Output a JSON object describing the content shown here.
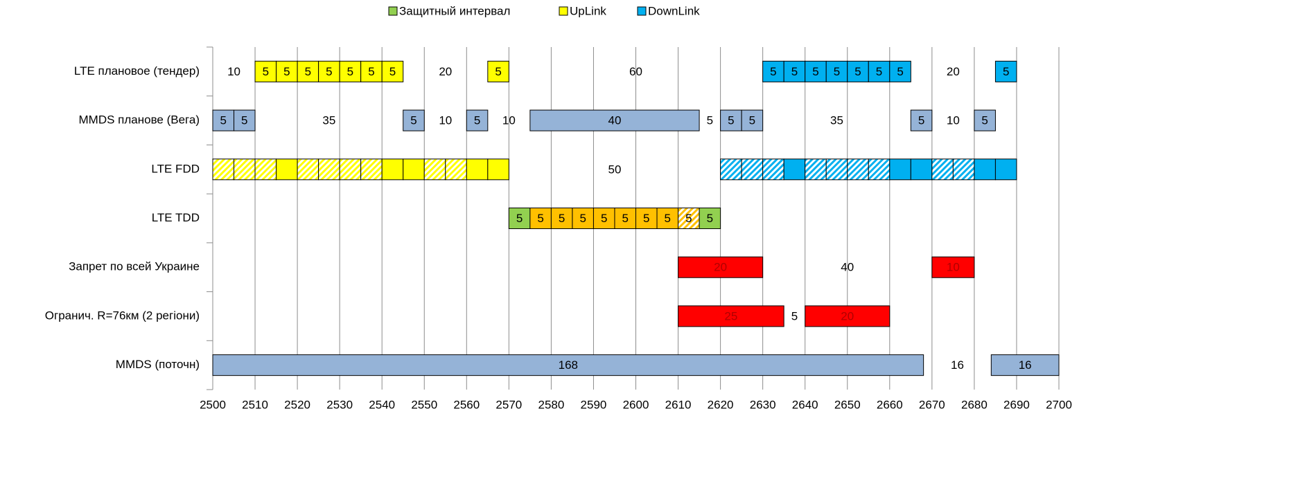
{
  "chart_data": {
    "type": "spectrum-barh",
    "legend": [
      {
        "name": "Защитный интервал",
        "color": "#92d050"
      },
      {
        "name": "UpLink",
        "color": "#ffff00"
      },
      {
        "name": "DownLink",
        "color": "#00b0f0"
      }
    ],
    "xlim": [
      2500,
      2700
    ],
    "xticks": [
      2500,
      2510,
      2520,
      2530,
      2540,
      2550,
      2560,
      2570,
      2580,
      2590,
      2600,
      2610,
      2620,
      2630,
      2640,
      2650,
      2660,
      2670,
      2680,
      2690,
      2700
    ],
    "grid": true,
    "rows": [
      {
        "name": "LTE плановое (тендер)",
        "segments": [
          {
            "value": 10,
            "fill": null,
            "label": true
          },
          {
            "value": 5,
            "fill": "#ffff00",
            "label": true
          },
          {
            "value": 5,
            "fill": "#ffff00",
            "label": true
          },
          {
            "value": 5,
            "fill": "#ffff00",
            "label": true
          },
          {
            "value": 5,
            "fill": "#ffff00",
            "label": true
          },
          {
            "value": 5,
            "fill": "#ffff00",
            "label": true
          },
          {
            "value": 5,
            "fill": "#ffff00",
            "label": true
          },
          {
            "value": 5,
            "fill": "#ffff00",
            "label": true
          },
          {
            "value": 20,
            "fill": null,
            "label": true
          },
          {
            "value": 5,
            "fill": "#ffff00",
            "label": true
          },
          {
            "value": 60,
            "fill": null,
            "label": true
          },
          {
            "value": 5,
            "fill": "#00b0f0",
            "label": true
          },
          {
            "value": 5,
            "fill": "#00b0f0",
            "label": true
          },
          {
            "value": 5,
            "fill": "#00b0f0",
            "label": true
          },
          {
            "value": 5,
            "fill": "#00b0f0",
            "label": true
          },
          {
            "value": 5,
            "fill": "#00b0f0",
            "label": true
          },
          {
            "value": 5,
            "fill": "#00b0f0",
            "label": true
          },
          {
            "value": 5,
            "fill": "#00b0f0",
            "label": true
          },
          {
            "value": 20,
            "fill": null,
            "label": true
          },
          {
            "value": 5,
            "fill": "#00b0f0",
            "label": true
          }
        ]
      },
      {
        "name": "MMDS планове (Вега)",
        "segments": [
          {
            "value": 5,
            "fill": "#95b3d7",
            "label": true
          },
          {
            "value": 5,
            "fill": "#95b3d7",
            "label": true
          },
          {
            "value": 35,
            "fill": null,
            "label": true
          },
          {
            "value": 5,
            "fill": "#95b3d7",
            "label": true
          },
          {
            "value": 10,
            "fill": null,
            "label": true
          },
          {
            "value": 5,
            "fill": "#95b3d7",
            "label": true
          },
          {
            "value": 10,
            "fill": null,
            "label": true
          },
          {
            "value": 40,
            "fill": "#95b3d7",
            "label": true
          },
          {
            "value": 5,
            "fill": null,
            "label": true
          },
          {
            "value": 5,
            "fill": "#95b3d7",
            "label": true
          },
          {
            "value": 5,
            "fill": "#95b3d7",
            "label": true
          },
          {
            "value": 35,
            "fill": null,
            "label": true
          },
          {
            "value": 5,
            "fill": "#95b3d7",
            "label": true
          },
          {
            "value": 10,
            "fill": null,
            "label": true
          },
          {
            "value": 5,
            "fill": "#95b3d7",
            "label": true
          }
        ]
      },
      {
        "name": "LTE FDD",
        "segments": [
          {
            "value": 5,
            "fill": "#ffff00",
            "hatch": true,
            "label": false
          },
          {
            "value": 5,
            "fill": "#ffff00",
            "hatch": true,
            "label": false
          },
          {
            "value": 5,
            "fill": "#ffff00",
            "hatch": true,
            "label": false
          },
          {
            "value": 5,
            "fill": "#ffff00",
            "label": false
          },
          {
            "value": 5,
            "fill": "#ffff00",
            "hatch": true,
            "label": false
          },
          {
            "value": 5,
            "fill": "#ffff00",
            "hatch": true,
            "label": false
          },
          {
            "value": 5,
            "fill": "#ffff00",
            "hatch": true,
            "label": false
          },
          {
            "value": 5,
            "fill": "#ffff00",
            "hatch": true,
            "label": false
          },
          {
            "value": 5,
            "fill": "#ffff00",
            "label": false
          },
          {
            "value": 5,
            "fill": "#ffff00",
            "label": false
          },
          {
            "value": 5,
            "fill": "#ffff00",
            "hatch": true,
            "label": false
          },
          {
            "value": 5,
            "fill": "#ffff00",
            "hatch": true,
            "label": false
          },
          {
            "value": 5,
            "fill": "#ffff00",
            "label": false
          },
          {
            "value": 5,
            "fill": "#ffff00",
            "label": false
          },
          {
            "value": 50,
            "fill": null,
            "label": true
          },
          {
            "value": 5,
            "fill": "#00b0f0",
            "hatch": true,
            "label": false
          },
          {
            "value": 5,
            "fill": "#00b0f0",
            "hatch": true,
            "label": false
          },
          {
            "value": 5,
            "fill": "#00b0f0",
            "hatch": true,
            "label": false
          },
          {
            "value": 5,
            "fill": "#00b0f0",
            "label": false
          },
          {
            "value": 5,
            "fill": "#00b0f0",
            "hatch": true,
            "label": false
          },
          {
            "value": 5,
            "fill": "#00b0f0",
            "hatch": true,
            "label": false
          },
          {
            "value": 5,
            "fill": "#00b0f0",
            "hatch": true,
            "label": false
          },
          {
            "value": 5,
            "fill": "#00b0f0",
            "hatch": true,
            "label": false
          },
          {
            "value": 5,
            "fill": "#00b0f0",
            "label": false
          },
          {
            "value": 5,
            "fill": "#00b0f0",
            "label": false
          },
          {
            "value": 5,
            "fill": "#00b0f0",
            "hatch": true,
            "label": false
          },
          {
            "value": 5,
            "fill": "#00b0f0",
            "hatch": true,
            "label": false
          },
          {
            "value": 5,
            "fill": "#00b0f0",
            "label": false
          },
          {
            "value": 5,
            "fill": "#00b0f0",
            "label": false
          }
        ]
      },
      {
        "name": "LTE TDD",
        "segments": [
          {
            "value": 70,
            "fill": null,
            "label": false
          },
          {
            "value": 5,
            "fill": "#92d050",
            "label": true
          },
          {
            "value": 5,
            "fill": "#ffc000",
            "label": true
          },
          {
            "value": 5,
            "fill": "#ffc000",
            "label": true
          },
          {
            "value": 5,
            "fill": "#ffc000",
            "label": true
          },
          {
            "value": 5,
            "fill": "#ffc000",
            "label": true
          },
          {
            "value": 5,
            "fill": "#ffc000",
            "label": true
          },
          {
            "value": 5,
            "fill": "#ffc000",
            "label": true
          },
          {
            "value": 5,
            "fill": "#ffc000",
            "label": true
          },
          {
            "value": 5,
            "fill": "#ffc000",
            "hatch": true,
            "label": true
          },
          {
            "value": 5,
            "fill": "#92d050",
            "label": true
          }
        ]
      },
      {
        "name": "Запрет по всей Украине",
        "segments": [
          {
            "value": 110,
            "fill": null,
            "label": false
          },
          {
            "value": 20,
            "fill": "#ff0000",
            "label": true,
            "label_color": "#b00000"
          },
          {
            "value": 40,
            "fill": null,
            "label": true
          },
          {
            "value": 10,
            "fill": "#ff0000",
            "label": true,
            "label_color": "#b00000"
          }
        ]
      },
      {
        "name": "Огранич. R=76км (2 регіони)",
        "segments": [
          {
            "value": 110,
            "fill": null,
            "label": false
          },
          {
            "value": 25,
            "fill": "#ff0000",
            "label": true,
            "label_color": "#b00000"
          },
          {
            "value": 5,
            "fill": null,
            "label": true
          },
          {
            "value": 20,
            "fill": "#ff0000",
            "label": true,
            "label_color": "#b00000"
          }
        ]
      },
      {
        "name": "MMDS (поточн)",
        "segments": [
          {
            "value": 168,
            "fill": "#95b3d7",
            "label": true
          },
          {
            "value": 16,
            "fill": null,
            "label": true
          },
          {
            "value": 16,
            "fill": "#95b3d7",
            "label": true
          }
        ]
      }
    ]
  }
}
